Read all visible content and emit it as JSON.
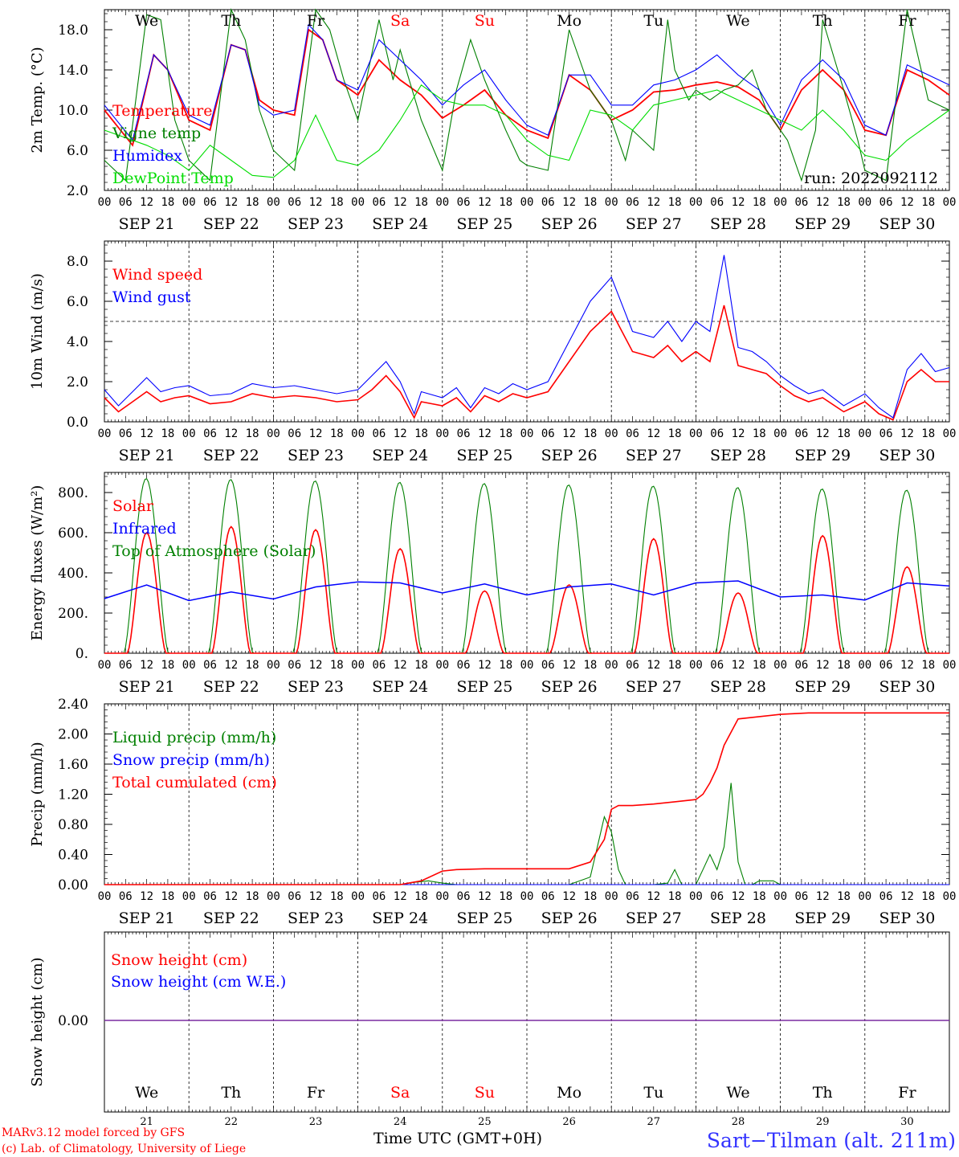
{
  "colors": {
    "temperature": "#ff0000",
    "vigne": "#008000",
    "humidex": "#0000ff",
    "dewpoint": "#00dd00",
    "wind_speed": "#ff0000",
    "wind_gust": "#0000ff",
    "solar": "#ff0000",
    "infrared": "#0000ff",
    "toa": "#008000",
    "liquid": "#008000",
    "snow_precip": "#0000ff",
    "cumul": "#ff0000",
    "snow_h": "#ff0000",
    "snow_we": "#0000ff",
    "weekday": "#000000",
    "weekend": "#ff0000",
    "station": "#3333ff",
    "footer": "#ff0000"
  },
  "chart_data": [
    {
      "type": "line",
      "ylabel": "2m Temp. (°C)",
      "ylim": [
        2,
        20
      ],
      "yticks": [
        "2.0",
        "6.0",
        "10.0",
        "14.0",
        "18.0"
      ],
      "run_label": "run: 2022092112",
      "weekday_labels": [
        "We",
        "Th",
        "Fr",
        "Sa",
        "Su",
        "Mo",
        "Tu",
        "We",
        "Th",
        "Fr"
      ],
      "series": [
        {
          "name": "Temperature",
          "key": "temperature",
          "x": [
            0,
            8,
            14,
            18,
            24,
            30,
            36,
            40,
            44,
            48,
            54,
            58,
            62,
            66,
            72,
            78,
            84,
            90,
            96,
            102,
            108,
            114,
            120,
            126,
            132,
            138,
            144,
            150,
            156,
            162,
            168,
            174,
            180,
            186,
            192,
            198,
            204,
            210,
            216,
            222,
            228,
            234,
            240
          ],
          "y": [
            10,
            6.5,
            15.5,
            14,
            9,
            8,
            16.5,
            16,
            11,
            10,
            9.5,
            18,
            17,
            13,
            11.5,
            15,
            13,
            11.5,
            9.2,
            10.5,
            12,
            9.5,
            8,
            7.2,
            13.5,
            12,
            9,
            10,
            11.8,
            12,
            12.5,
            12.8,
            12.3,
            11,
            8,
            12,
            14,
            12,
            8,
            7.5,
            14,
            13,
            11.5
          ]
        },
        {
          "name": "Vigne temp",
          "key": "vigne",
          "x": [
            0,
            6,
            12,
            16,
            20,
            24,
            30,
            36,
            40,
            44,
            48,
            54,
            60,
            64,
            68,
            72,
            78,
            82,
            84,
            90,
            96,
            100,
            104,
            108,
            114,
            118,
            120,
            126,
            132,
            138,
            144,
            148,
            150,
            156,
            160,
            162,
            166,
            168,
            172,
            176,
            180,
            184,
            188,
            190,
            194,
            198,
            202,
            204,
            210,
            214,
            216,
            222,
            228,
            234,
            240
          ],
          "y": [
            5,
            3,
            19.5,
            19,
            9,
            5,
            3,
            20,
            17,
            10,
            6,
            4,
            20,
            18,
            13,
            9,
            19,
            13,
            16,
            9,
            4,
            12,
            17,
            13,
            8,
            5,
            4.5,
            4,
            18,
            12,
            9,
            5,
            8,
            6,
            19,
            14,
            11,
            12,
            11,
            12,
            12.5,
            14,
            10,
            9,
            7,
            3,
            8,
            19,
            12,
            7,
            4,
            3,
            20,
            11,
            10
          ]
        },
        {
          "name": "Humidex",
          "key": "humidex",
          "x": [
            0,
            8,
            14,
            18,
            24,
            30,
            36,
            40,
            44,
            48,
            54,
            58,
            62,
            66,
            72,
            78,
            84,
            90,
            96,
            102,
            108,
            114,
            120,
            126,
            132,
            138,
            144,
            150,
            156,
            162,
            168,
            174,
            180,
            186,
            192,
            198,
            204,
            210,
            216,
            222,
            228,
            234,
            240
          ],
          "y": [
            10.5,
            7,
            15.5,
            14,
            9.5,
            8.5,
            16.5,
            16,
            10.5,
            9.5,
            10,
            18.5,
            17,
            13,
            12,
            17,
            15,
            13,
            10.5,
            12.5,
            14,
            11,
            8.5,
            7.5,
            13.5,
            13.5,
            10.5,
            10.5,
            12.5,
            13,
            14,
            15.5,
            13.5,
            12,
            8.5,
            13,
            15,
            13,
            8.5,
            7.5,
            14.5,
            13.5,
            12.5
          ]
        },
        {
          "name": "DewPoint Temp",
          "key": "dewpoint",
          "x": [
            0,
            12,
            18,
            24,
            30,
            36,
            42,
            48,
            54,
            60,
            66,
            72,
            78,
            84,
            90,
            96,
            102,
            108,
            114,
            120,
            126,
            132,
            138,
            144,
            150,
            156,
            162,
            168,
            174,
            180,
            186,
            192,
            198,
            204,
            210,
            216,
            222,
            228,
            234,
            240
          ],
          "y": [
            8,
            6.5,
            5.5,
            4,
            6.5,
            5,
            3.5,
            3.3,
            5,
            9.5,
            5,
            4.5,
            6,
            9,
            12.5,
            11,
            10.5,
            10.5,
            9.5,
            7,
            5.5,
            5,
            10,
            9.5,
            8,
            10.5,
            11,
            11.5,
            12,
            11,
            10,
            9,
            8,
            10,
            8,
            5.5,
            5,
            7,
            8.5,
            10
          ]
        }
      ],
      "date_labels": [
        "SEP 21",
        "SEP 22",
        "SEP 23",
        "SEP 24",
        "SEP 25",
        "SEP 26",
        "SEP 27",
        "SEP 28",
        "SEP 29",
        "SEP 30"
      ]
    },
    {
      "type": "line",
      "ylabel": "10m Wind (m/s)",
      "ylim": [
        0,
        9
      ],
      "yticks": [
        "0.0",
        "2.0",
        "4.0",
        "6.0",
        "8.0"
      ],
      "reference_line": 5,
      "series": [
        {
          "name": "Wind speed",
          "key": "wind_speed",
          "x": [
            0,
            4,
            8,
            12,
            16,
            20,
            24,
            30,
            36,
            42,
            48,
            54,
            60,
            66,
            72,
            76,
            80,
            84,
            88,
            90,
            96,
            100,
            104,
            108,
            112,
            116,
            120,
            126,
            132,
            138,
            144,
            150,
            156,
            160,
            164,
            168,
            172,
            176,
            180,
            184,
            188,
            192,
            196,
            200,
            204,
            210,
            216,
            220,
            224,
            228,
            232,
            236,
            240
          ],
          "y": [
            1.2,
            0.5,
            1.0,
            1.5,
            1.0,
            1.2,
            1.3,
            0.9,
            1.0,
            1.4,
            1.2,
            1.3,
            1.2,
            1.0,
            1.1,
            1.6,
            2.3,
            1.5,
            0.2,
            1.0,
            0.8,
            1.2,
            0.5,
            1.3,
            1.0,
            1.4,
            1.2,
            1.5,
            3.0,
            4.5,
            5.5,
            3.5,
            3.2,
            3.8,
            3.0,
            3.5,
            3.0,
            5.8,
            2.8,
            2.6,
            2.4,
            1.8,
            1.3,
            1.0,
            1.2,
            0.5,
            1.0,
            0.4,
            0.1,
            2.0,
            2.6,
            2.0,
            2.0
          ]
        },
        {
          "name": "Wind gust",
          "key": "wind_gust",
          "x": [
            0,
            4,
            8,
            12,
            16,
            20,
            24,
            30,
            36,
            42,
            48,
            54,
            60,
            66,
            72,
            76,
            80,
            84,
            88,
            90,
            96,
            100,
            104,
            108,
            112,
            116,
            120,
            126,
            132,
            138,
            144,
            150,
            156,
            160,
            164,
            168,
            172,
            176,
            180,
            184,
            188,
            192,
            196,
            200,
            204,
            210,
            216,
            220,
            224,
            228,
            232,
            236,
            240
          ],
          "y": [
            1.6,
            0.8,
            1.5,
            2.2,
            1.5,
            1.7,
            1.8,
            1.3,
            1.4,
            1.9,
            1.7,
            1.8,
            1.6,
            1.4,
            1.6,
            2.3,
            3.0,
            2.0,
            0.4,
            1.5,
            1.2,
            1.7,
            0.7,
            1.7,
            1.4,
            1.9,
            1.6,
            2.0,
            4.0,
            6.0,
            7.2,
            4.5,
            4.2,
            5.0,
            4.0,
            5.0,
            4.5,
            8.3,
            3.7,
            3.5,
            3.0,
            2.3,
            1.8,
            1.4,
            1.6,
            0.8,
            1.4,
            0.7,
            0.2,
            2.6,
            3.4,
            2.5,
            2.7
          ]
        }
      ]
    },
    {
      "type": "line",
      "ylabel": "Energy fluxes (W/m²)",
      "ylim": [
        0,
        900
      ],
      "yticks": [
        "0.",
        "200.",
        "400.",
        "600.",
        "800."
      ],
      "series": [
        {
          "name": "Solar",
          "key": "solar",
          "peaks": [
            600,
            630,
            615,
            520,
            310,
            340,
            570,
            300,
            585,
            430
          ]
        },
        {
          "name": "Infrared",
          "key": "infrared",
          "x": [
            0,
            12,
            24,
            36,
            48,
            60,
            72,
            84,
            96,
            108,
            120,
            132,
            144,
            156,
            168,
            180,
            192,
            204,
            216,
            228,
            240
          ],
          "y": [
            272,
            340,
            262,
            305,
            270,
            330,
            355,
            350,
            300,
            345,
            290,
            330,
            345,
            290,
            350,
            360,
            280,
            290,
            265,
            350,
            335
          ]
        },
        {
          "name": "Top of Atmosphere (Solar)",
          "key": "toa",
          "peaks": [
            870,
            865,
            858,
            851,
            845,
            838,
            832,
            825,
            818,
            812
          ]
        }
      ]
    },
    {
      "type": "line",
      "ylabel": "Precip (mm/h)",
      "ylim": [
        0,
        2.4
      ],
      "yticks": [
        "0.00",
        "0.40",
        "0.80",
        "1.20",
        "1.60",
        "2.00",
        "2.40"
      ],
      "series": [
        {
          "name": "Liquid precip (mm/h)",
          "key": "liquid",
          "x": [
            0,
            84,
            88,
            92,
            96,
            100,
            108,
            120,
            132,
            138,
            140,
            142,
            144,
            146,
            148,
            150,
            156,
            160,
            162,
            164,
            166,
            168,
            170,
            172,
            174,
            176,
            178,
            180,
            182,
            184,
            186,
            190,
            192,
            240
          ],
          "y": [
            0,
            0,
            0.03,
            0.05,
            0.02,
            0,
            0,
            0,
            0,
            0.1,
            0.5,
            0.9,
            0.7,
            0.2,
            0,
            0,
            0,
            0.02,
            0.2,
            0,
            0,
            0,
            0.2,
            0.4,
            0.2,
            0.5,
            1.35,
            0.3,
            0,
            0,
            0.05,
            0.05,
            0,
            0
          ]
        },
        {
          "name": "Snow precip (mm/h)",
          "key": "snow_precip",
          "x": [
            0,
            240
          ],
          "y": [
            0,
            0
          ]
        },
        {
          "name": "Total cumulated (cm)",
          "key": "cumul",
          "x": [
            0,
            84,
            90,
            96,
            100,
            108,
            120,
            132,
            138,
            142,
            144,
            146,
            150,
            156,
            162,
            168,
            170,
            172,
            174,
            176,
            180,
            192,
            200,
            240
          ],
          "y": [
            0,
            0,
            0.05,
            0.18,
            0.2,
            0.21,
            0.21,
            0.21,
            0.3,
            0.6,
            1.0,
            1.05,
            1.05,
            1.07,
            1.1,
            1.13,
            1.2,
            1.35,
            1.55,
            1.85,
            2.2,
            2.26,
            2.28,
            2.28
          ]
        }
      ]
    },
    {
      "type": "line",
      "ylabel": "Snow height (cm)",
      "yticks": [
        "0.00"
      ],
      "series": [
        {
          "name": "Snow height (cm)",
          "key": "snow_h",
          "x": [
            0,
            240
          ],
          "y": [
            0,
            0
          ]
        },
        {
          "name": "Snow height (cm W.E.)",
          "key": "snow_we",
          "x": [
            0,
            240
          ],
          "y": [
            0,
            0
          ]
        }
      ],
      "day_numbers": [
        "21",
        "22",
        "23",
        "24",
        "25",
        "26",
        "27",
        "28",
        "29",
        "30"
      ]
    }
  ],
  "hour_ticks": [
    "00",
    "06",
    "12",
    "18"
  ],
  "xlabel": "Time UTC (GMT+0H)",
  "footer": {
    "line1": "MARv3.12 model forced by GFS",
    "line2": "(c) Lab. of Climatology, University of Liege"
  },
  "station": "Sart−Tilman (alt. 211m)"
}
